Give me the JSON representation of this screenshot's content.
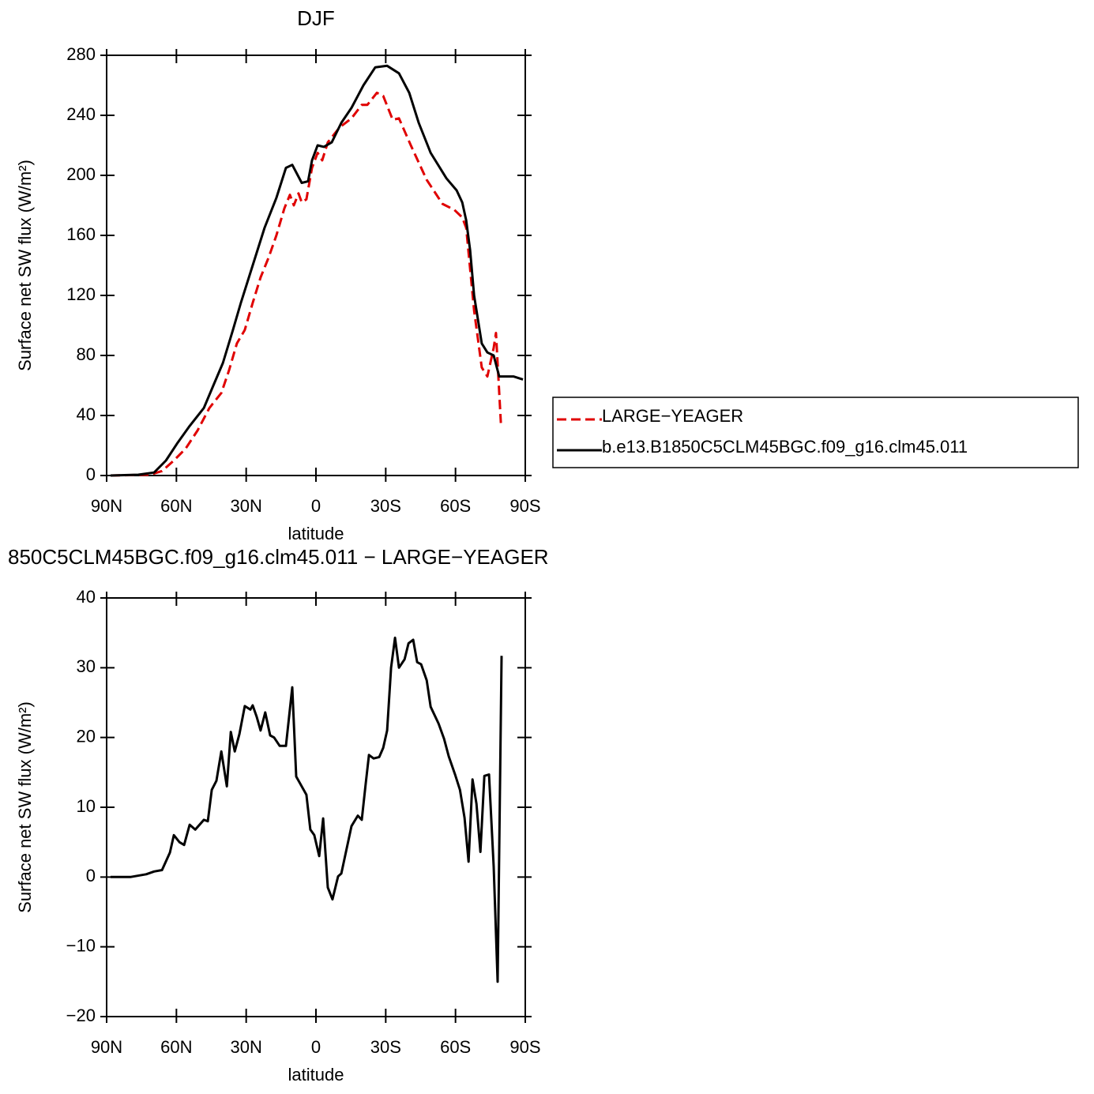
{
  "chart_data": [
    {
      "type": "line",
      "title": "DJF",
      "xlabel": "latitude",
      "ylabel": "Surface net SW flux (W/m²)",
      "xlim": [
        90,
        -90
      ],
      "ylim": [
        0,
        280
      ],
      "xticks": [
        {
          "value": 90,
          "label": "90N"
        },
        {
          "value": 60,
          "label": "60N"
        },
        {
          "value": 30,
          "label": "30N"
        },
        0,
        {
          "value": -30,
          "label": "30S"
        },
        {
          "value": -60,
          "label": "60S"
        },
        {
          "value": -90,
          "label": "90S"
        }
      ],
      "yticks": [
        0,
        40,
        80,
        120,
        160,
        200,
        240,
        280
      ],
      "legend": "right",
      "series": [
        {
          "name": "LARGE−YEAGER",
          "color": "#e00000",
          "dash": true,
          "x": [
            88.3,
            71.3,
            66.2,
            61.1,
            56,
            50.9,
            45.8,
            40.7,
            37.4,
            34,
            30.6,
            27.2,
            23.8,
            20.4,
            17,
            13.6,
            11.2,
            9.5,
            7.5,
            6.1,
            4.1,
            1.7,
            -0.7,
            -2.7,
            -5.1,
            -10.2,
            -15.3,
            -19.7,
            -22.1,
            -26.2,
            -28.9,
            -33,
            -35.7,
            -40.8,
            -47.6,
            -54.4,
            -59.5,
            -62.9,
            -64.6,
            -68,
            -71.3,
            -73.7,
            -76.4,
            -77.4,
            -79.5
          ],
          "values": [
            0,
            0.5,
            3,
            10,
            18,
            30,
            45,
            55,
            70,
            88,
            97,
            115,
            132,
            145,
            160,
            178,
            187,
            180,
            188,
            182,
            184,
            205,
            215,
            210,
            222,
            232,
            238,
            247,
            247,
            255,
            253,
            237,
            238,
            220,
            197,
            181,
            177,
            172,
            165,
            110,
            72,
            66,
            85,
            95,
            35
          ]
        },
        {
          "name": "b.e13.B1850C5CLM45BGC.f09_g16.clm45.011",
          "color": "#000000",
          "dash": false,
          "x": [
            88.3,
            76.4,
            69.6,
            64.5,
            59.4,
            54.3,
            48.2,
            44.1,
            40,
            35.7,
            32.3,
            27.2,
            22.1,
            17,
            12.9,
            10.2,
            6.1,
            3.4,
            1.7,
            -0.7,
            -3.4,
            -6.8,
            -10.9,
            -15.3,
            -20.4,
            -25.5,
            -30.6,
            -35.7,
            -40.1,
            -44.2,
            -49.3,
            -56.1,
            -60.5,
            -62.9,
            -64.6,
            -66.3,
            -68,
            -71.3,
            -73.7,
            -76.4,
            -78.8,
            -84.9,
            -89
          ],
          "values": [
            0,
            0.5,
            2,
            10,
            22,
            33,
            45,
            60,
            75,
            97,
            115,
            140,
            165,
            185,
            205,
            207,
            195,
            196,
            210,
            220,
            219,
            222,
            235,
            245,
            260,
            272,
            273,
            268,
            255,
            235,
            215,
            198,
            190,
            182,
            170,
            150,
            120,
            88,
            82,
            80,
            66,
            66,
            64
          ]
        }
      ]
    },
    {
      "type": "line",
      "title": "850C5CLM45BGC.f09_g16.clm45.011 − LARGE−YEAGER",
      "xlabel": "latitude",
      "ylabel": "Surface net SW flux (W/m²)",
      "xlim": [
        90,
        -90
      ],
      "ylim": [
        -20,
        40
      ],
      "xticks": [
        {
          "value": 90,
          "label": "90N"
        },
        {
          "value": 60,
          "label": "60N"
        },
        {
          "value": 30,
          "label": "30N"
        },
        0,
        {
          "value": -30,
          "label": "30S"
        },
        {
          "value": -60,
          "label": "60S"
        },
        {
          "value": -90,
          "label": "90S"
        }
      ],
      "yticks": [
        {
          "value": -20,
          "label": "−20"
        },
        {
          "value": -10,
          "label": "−10"
        },
        0,
        10,
        20,
        30,
        40
      ],
      "series": [
        {
          "color": "#000000",
          "dash": false,
          "x": [
            88.3,
            79.8,
            73,
            69.6,
            66.2,
            62.8,
            61.1,
            58.7,
            56.7,
            54.3,
            51.9,
            48.2,
            46.5,
            44.8,
            42.8,
            40.7,
            38.3,
            36.6,
            34.9,
            32.9,
            30.6,
            28.2,
            27.2,
            25.5,
            23.8,
            21.8,
            19.7,
            18,
            15.6,
            12.9,
            10.2,
            8.5,
            4.1,
            2.4,
            0.7,
            -1.4,
            -3.1,
            -5.1,
            -7.1,
            -9.5,
            -10.9,
            -15.3,
            -18,
            -19.7,
            -21.4,
            -22.8,
            -24.8,
            -27.2,
            -28.9,
            -30.6,
            -32.3,
            -34,
            -35.7,
            -38.1,
            -39.8,
            -41.8,
            -43.5,
            -45.2,
            -47.6,
            -49.3,
            -52.7,
            -55.1,
            -57.1,
            -59.9,
            -61.9,
            -63.9,
            -65.6,
            -67.3,
            -69,
            -70.7,
            -72.4,
            -74.4,
            -76.4,
            -78.1,
            -79.8
          ],
          "values": [
            0,
            0,
            0.4,
            0.8,
            1,
            3.5,
            6,
            5,
            4.6,
            7.5,
            6.8,
            8.2,
            8,
            12.5,
            13.8,
            18,
            13,
            20.8,
            18,
            20.5,
            24.5,
            24,
            24.6,
            23,
            21,
            23.6,
            20.3,
            20,
            18.8,
            18.8,
            27.2,
            14.4,
            11.8,
            6.8,
            6,
            3,
            8.4,
            -1.5,
            -3.2,
            0.1,
            0.5,
            7.3,
            8.8,
            8.2,
            13.4,
            17.5,
            17,
            17.2,
            18.5,
            21,
            30,
            34.3,
            30,
            31.2,
            33.5,
            34,
            30.8,
            30.5,
            28.2,
            24.4,
            22,
            19.8,
            17.3,
            14.6,
            12.5,
            8.5,
            2.2,
            14,
            10.5,
            3.6,
            14.5,
            14.7,
            1.5,
            -15,
            31.7
          ]
        }
      ]
    }
  ]
}
